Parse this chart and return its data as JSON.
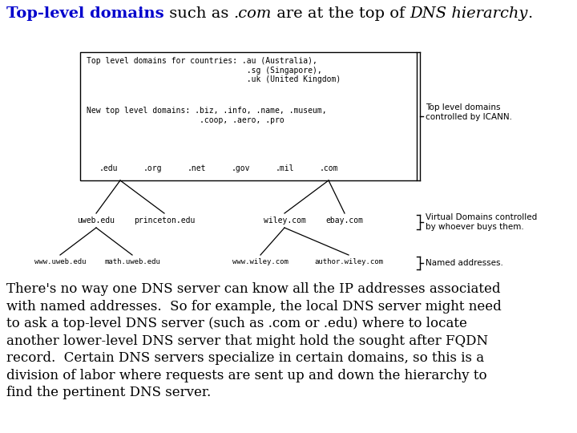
{
  "title_parts": [
    {
      "text": "Top-level domains",
      "bold": true,
      "color": "#0000CC",
      "style": "normal"
    },
    {
      "text": " such as ",
      "bold": false,
      "color": "#000000",
      "style": "normal"
    },
    {
      "text": ".com",
      "bold": false,
      "color": "#000000",
      "style": "italic"
    },
    {
      "text": " are at the top of ",
      "bold": false,
      "color": "#000000",
      "style": "normal"
    },
    {
      "text": "DNS hierarchy",
      "bold": false,
      "color": "#000000",
      "style": "italic"
    },
    {
      "text": ".",
      "bold": false,
      "color": "#000000",
      "style": "normal"
    }
  ],
  "body_text": "There's no way one DNS server can know all the IP addresses associated\nwith named addresses.  So for example, the local DNS server might need\nto ask a top-level DNS server (such as .com or .edu) where to locate\nanother lower-level DNS server that might hold the sought after FQDN\nrecord.  Certain DNS servers specialize in certain domains, so this is a\ndivision of labor where requests are sent up and down the hierarchy to\nfind the pertinent DNS server.",
  "bg_color": "#FFFFFF",
  "diagram_font": "monospace",
  "body_font_size": 12,
  "title_fontsize": 14,
  "box_text1": "Top level domains for countries: .au (Australia),\n                                  .sg (Singapore),\n                                  .uk (United Kingdom)",
  "box_text2": "New top level domains: .biz, .info, .name, .museum,\n                        .coop, .aero, .pro",
  "tld_labels": [
    ".edu",
    ".org",
    ".net",
    ".gov",
    ".mil",
    ".com"
  ],
  "lv2_left": [
    "uweb.edu",
    "princeton.edu"
  ],
  "lv2_right": [
    "wiley.com",
    "ebay.com"
  ],
  "lv3_left": [
    "www.uweb.edu",
    "math.uweb.edu"
  ],
  "lv3_right": [
    "www.wiley.com",
    "author.wiley.com"
  ],
  "label_icann": "Top level domains\ncontrolled by ICANN.",
  "label_virtual": "Virtual Domains controlled\nby whoever buys them.",
  "label_named": "Named addresses."
}
